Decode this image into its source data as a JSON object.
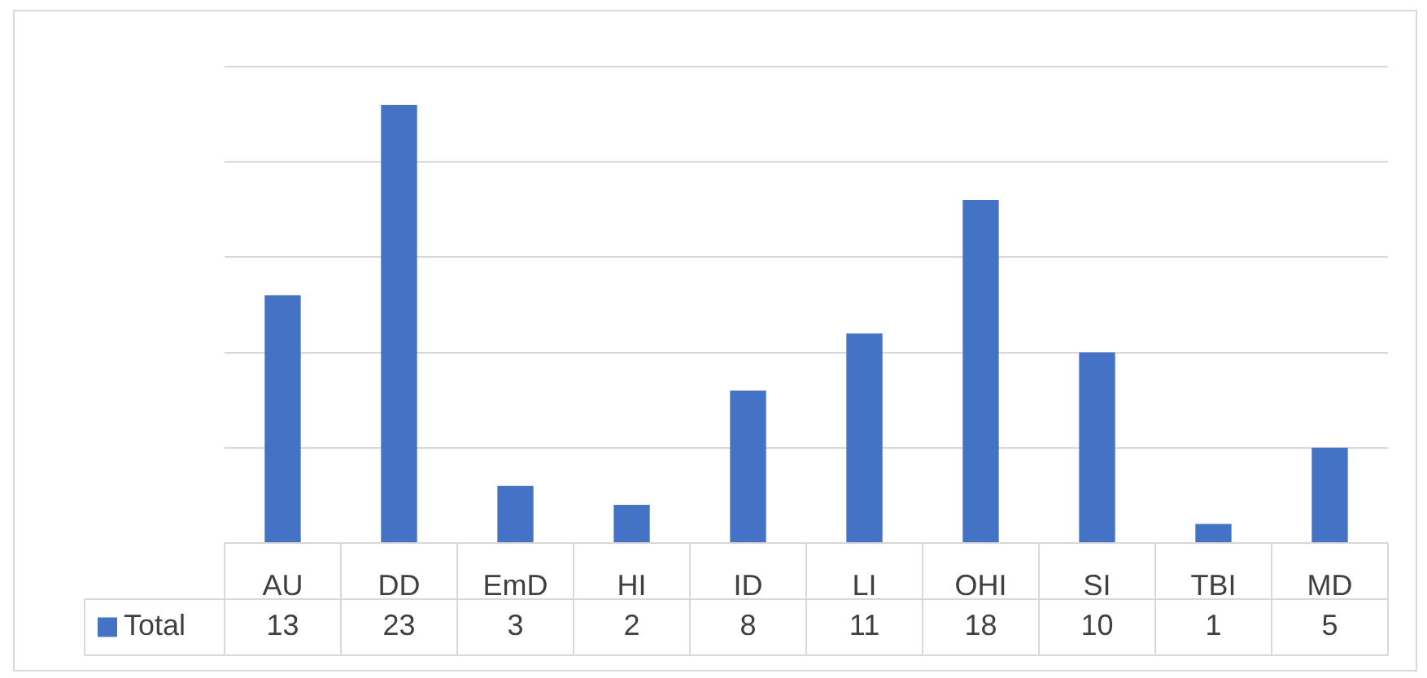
{
  "chart_data": {
    "type": "bar",
    "categories": [
      "AU",
      "DD",
      "EmD",
      "HI",
      "ID",
      "LI",
      "OHI",
      "SI",
      "TBI",
      "MD"
    ],
    "series": [
      {
        "name": "Total",
        "color": "#4472c4",
        "values": [
          13,
          23,
          3,
          2,
          8,
          11,
          18,
          10,
          1,
          5
        ]
      }
    ],
    "ylim": [
      0,
      25
    ],
    "yticks": [
      {
        "value": 0,
        "label": null
      },
      {
        "value": 5,
        "label": null
      },
      {
        "value": 10,
        "label": null
      },
      {
        "value": 15,
        "label": null
      },
      {
        "value": 20,
        "label": null
      },
      {
        "value": 25,
        "label": null
      }
    ],
    "grid": "y",
    "tick_labels": "x",
    "data_labels": true,
    "legend": "bottom left"
  }
}
